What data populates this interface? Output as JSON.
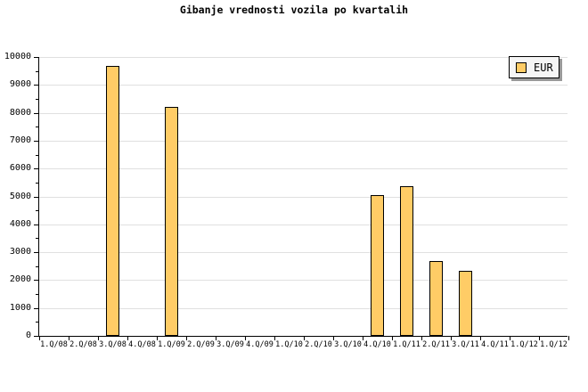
{
  "title": "Gibanje vrednosti vozila po kvartalih",
  "legend": {
    "label": "EUR"
  },
  "colors": {
    "bar_fill": "#FFCC66",
    "bar_border": "#000000",
    "grid": "#E0E0E0",
    "axis": "#000000",
    "legend_bg": "#F5F5F5",
    "legend_border": "#000000",
    "legend_shadow": "#999999",
    "background": "#FFFFFF",
    "text": "#000000"
  },
  "chart_data": {
    "type": "bar",
    "title": "Gibanje vrednosti vozila po kvartalih",
    "categories": [
      "1.Q/08",
      "2.Q/08",
      "3.Q/08",
      "4.Q/08",
      "1.Q/09",
      "2.Q/09",
      "3.Q/09",
      "4.Q/09",
      "1.Q/10",
      "2.Q/10",
      "3.Q/10",
      "4.Q/10",
      "1.Q/11",
      "2.Q/11",
      "3.Q/11",
      "4.Q/11",
      "1.Q/12",
      "1.Q/12"
    ],
    "series": [
      {
        "name": "EUR",
        "values": [
          null,
          null,
          9680,
          null,
          8210,
          null,
          null,
          null,
          null,
          null,
          null,
          5060,
          5370,
          2670,
          2320,
          null,
          null,
          null
        ]
      }
    ],
    "xlabel": "",
    "ylabel": "",
    "ylim": [
      0,
      10000
    ],
    "ytick_major": 1000,
    "ytick_minor": 500,
    "grid": "horizontal-major",
    "legend_entries": [
      "EUR"
    ],
    "legend_position": "top-right"
  }
}
